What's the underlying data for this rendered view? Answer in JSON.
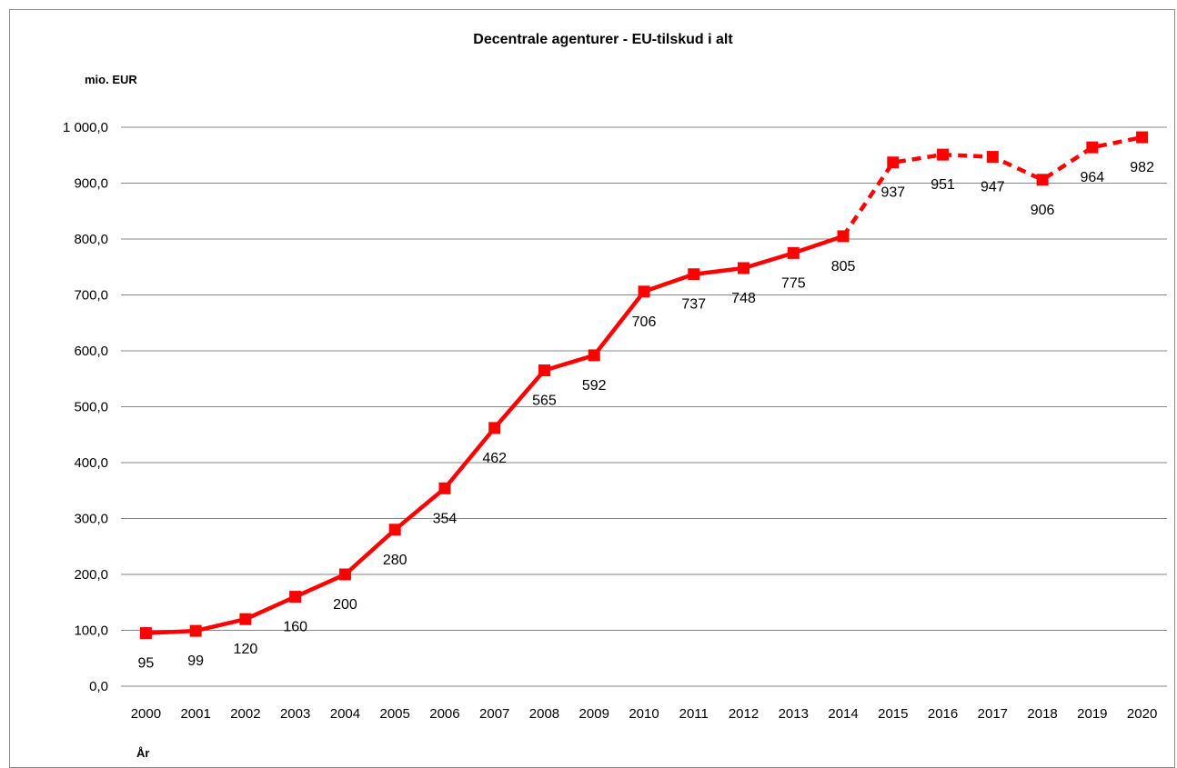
{
  "chart_data": {
    "type": "line",
    "title": "Decentrale agenturer - EU-tilskud i alt",
    "ylabel": "mio. EUR",
    "xlabel": "År",
    "ylim": [
      0,
      1000
    ],
    "ytick_values": [
      0,
      100,
      200,
      300,
      400,
      500,
      600,
      700,
      800,
      900,
      1000
    ],
    "ytick_labels": [
      "0,0",
      "100,0",
      "200,0",
      "300,0",
      "400,0",
      "500,0",
      "600,0",
      "700,0",
      "800,0",
      "900,0",
      "1 000,0"
    ],
    "grid": true,
    "legend": "none",
    "color": "#ff0000",
    "categories": [
      "2000",
      "2001",
      "2002",
      "2003",
      "2004",
      "2005",
      "2006",
      "2007",
      "2008",
      "2009",
      "2010",
      "2011",
      "2012",
      "2013",
      "2014",
      "2015",
      "2016",
      "2017",
      "2018",
      "2019",
      "2020"
    ],
    "series": [
      {
        "values": [
          95,
          99,
          120,
          160,
          200,
          280,
          354,
          462,
          565,
          592,
          706,
          737,
          748,
          775,
          805,
          937,
          951,
          947,
          906,
          964,
          982
        ],
        "labels": [
          "95",
          "99",
          "120",
          "160",
          "200",
          "280",
          "354",
          "462",
          "565",
          "592",
          "706",
          "737",
          "748",
          "775",
          "805",
          "937",
          "951",
          "947",
          "906",
          "964",
          "982"
        ],
        "solid_through_index": 14,
        "dashed_from_index": 14
      }
    ]
  }
}
